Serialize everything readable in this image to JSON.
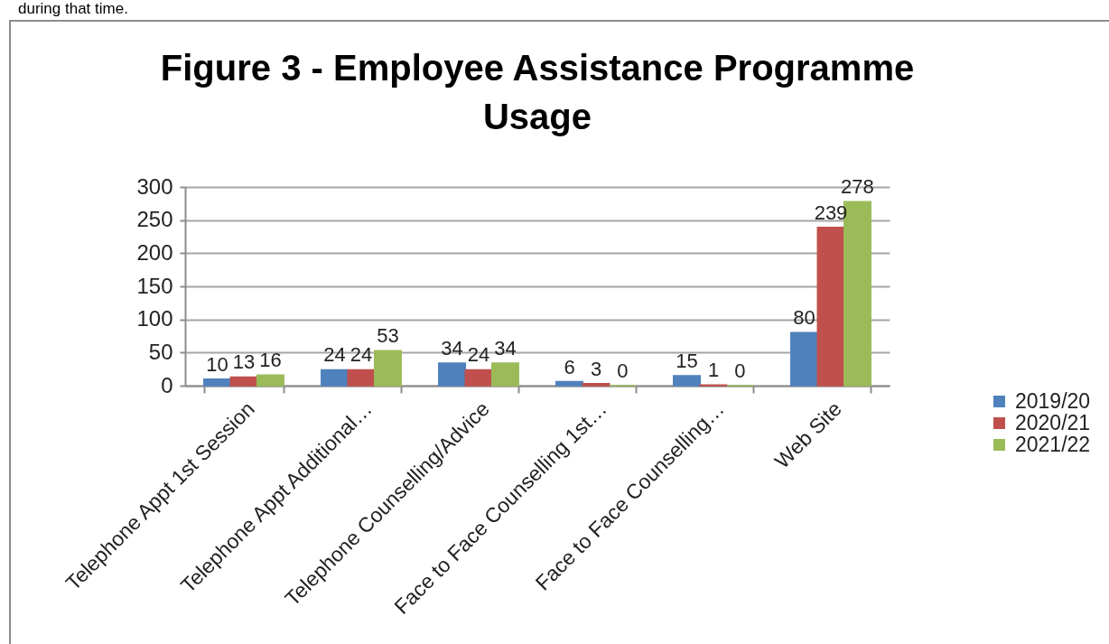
{
  "chart_data": {
    "type": "bar",
    "title": "Figure 3 - Employee Assistance Programme Usage",
    "annotations": [
      "during that time."
    ],
    "categories": [
      "Telephone Appt 1st Session",
      "Telephone Appt Additional…",
      "Telephone Counselling/Advice",
      "Face to Face Counselling 1st…",
      "Face to Face Counselling…",
      "Web Site"
    ],
    "series": [
      {
        "name": "2019/20",
        "color": "#4f81bd",
        "values": [
          10,
          24,
          34,
          6,
          15,
          80
        ]
      },
      {
        "name": "2020/21",
        "color": "#c0504d",
        "values": [
          13,
          24,
          24,
          3,
          1,
          239
        ]
      },
      {
        "name": "2021/22",
        "color": "#9bbb59",
        "values": [
          16,
          53,
          34,
          0,
          0,
          278
        ]
      }
    ],
    "ylim": [
      0,
      300
    ],
    "yticks": [
      0,
      50,
      100,
      150,
      200,
      250,
      300
    ],
    "grid": "y",
    "legend": "right",
    "data_labels": true
  }
}
